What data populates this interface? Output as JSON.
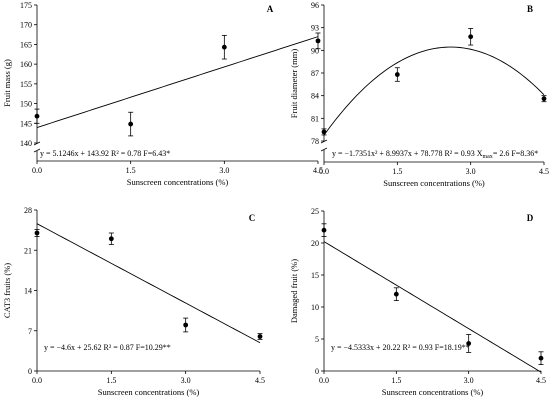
{
  "chart_data": [
    {
      "panel": "A",
      "type": "scatter",
      "xlabel": "Sunscreen concentrations (%)",
      "ylabel": "Fruit mass (g)",
      "xlim": [
        0,
        4.5
      ],
      "ylim": [
        140,
        175
      ],
      "axis_break": true,
      "x_ticks": [
        "0.0",
        "1.5",
        "3.0",
        "4.5"
      ],
      "y_ticks": [
        140,
        145,
        150,
        155,
        160,
        165,
        170,
        175
      ],
      "points": [
        {
          "x": 0.0,
          "y": 146.8,
          "err": 1.8
        },
        {
          "x": 1.5,
          "y": 144.8,
          "err": 3.0
        },
        {
          "x": 3.0,
          "y": 164.3,
          "err": 3.0
        },
        {
          "x": 4.5,
          "y": 165.9,
          "err": 2.0
        }
      ],
      "fit": {
        "kind": "linear",
        "coef": [
          143.92,
          5.1246
        ]
      },
      "equation": "y = 5.1246x + 143.92  R² = 0.78 F=6.43*"
    },
    {
      "panel": "B",
      "type": "scatter",
      "xlabel": "Sunscreen concentrations (%)",
      "ylabel": "Fruit diameter (mm)",
      "xlim": [
        0,
        4.5
      ],
      "ylim": [
        78,
        96
      ],
      "axis_break": true,
      "x_ticks": [
        "0.0",
        "1.5",
        "3.0",
        "4.5"
      ],
      "y_ticks": [
        78,
        81,
        84,
        87,
        90,
        93,
        96
      ],
      "points": [
        {
          "x": 0.0,
          "y": 79.2,
          "err": 0.4
        },
        {
          "x": 1.5,
          "y": 86.8,
          "err": 0.9
        },
        {
          "x": 3.0,
          "y": 91.8,
          "err": 1.1
        },
        {
          "x": 4.5,
          "y": 83.6,
          "err": 0.4
        }
      ],
      "fit": {
        "kind": "quadratic",
        "coef": [
          78.778,
          8.9937,
          -1.7351
        ]
      },
      "equation": "y = −1.7351x² + 8.9937x + 78.778  R² = 0.93  X",
      "equation_sub": "max",
      "equation_tail": "= 2.6 F=8.36*"
    },
    {
      "panel": "C",
      "type": "scatter",
      "xlabel": "Sunscreen concentrations (%)",
      "ylabel": "CAT3 fruits (%)",
      "xlim": [
        0,
        4.5
      ],
      "ylim": [
        0,
        28
      ],
      "axis_break": false,
      "x_ticks": [
        "0.0",
        "1.5",
        "3.0",
        "4.5"
      ],
      "y_ticks": [
        0,
        7,
        14,
        21,
        28
      ],
      "points": [
        {
          "x": 0.0,
          "y": 24.0,
          "err": 0.6
        },
        {
          "x": 1.5,
          "y": 23.0,
          "err": 1.0
        },
        {
          "x": 3.0,
          "y": 8.0,
          "err": 1.2
        },
        {
          "x": 4.5,
          "y": 6.0,
          "err": 0.5
        }
      ],
      "fit": {
        "kind": "linear",
        "coef": [
          25.62,
          -4.6
        ]
      },
      "equation": "y = −4.6x + 25.62  R² = 0.87 F=10.29**"
    },
    {
      "panel": "D",
      "type": "scatter",
      "xlabel": "Sunscreen concentrations (%)",
      "ylabel": "Damaged fruit (%)",
      "xlim": [
        0,
        4.5
      ],
      "ylim": [
        0,
        25
      ],
      "axis_break": false,
      "x_ticks": [
        "0.0",
        "1.5",
        "3.0",
        "4.5"
      ],
      "y_ticks": [
        0,
        5,
        10,
        15,
        20,
        25
      ],
      "points": [
        {
          "x": 0.0,
          "y": 22.0,
          "err": 1.0
        },
        {
          "x": 1.5,
          "y": 12.0,
          "err": 1.0
        },
        {
          "x": 3.0,
          "y": 4.3,
          "err": 1.4
        },
        {
          "x": 4.5,
          "y": 2.0,
          "err": 1.0
        }
      ],
      "fit": {
        "kind": "linear",
        "coef": [
          20.22,
          -4.5333
        ]
      },
      "equation": "y = −4.5333x + 20.22  R² = 0.93 F=18.19**"
    }
  ]
}
